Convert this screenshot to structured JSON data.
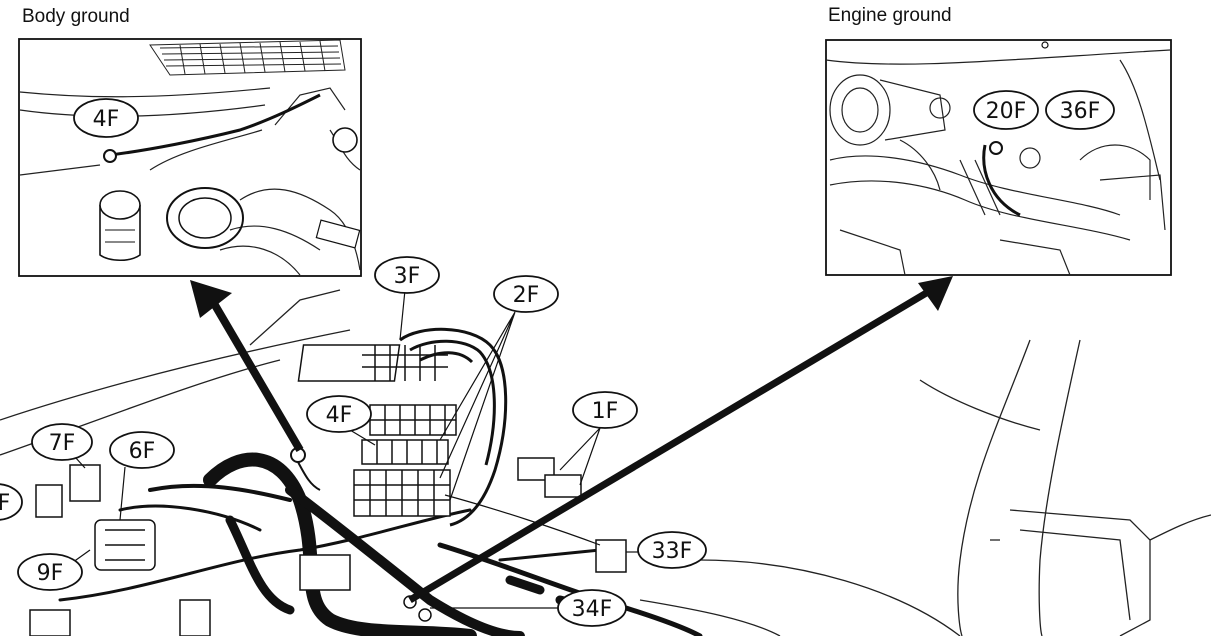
{
  "captions": {
    "body_ground": "Body ground",
    "engine_ground": "Engine ground"
  },
  "callouts": {
    "c4f_inset": "4F",
    "c20f": "20F",
    "c36f": "36F",
    "c3f": "3F",
    "c2f": "2F",
    "c4f": "4F",
    "c1f": "1F",
    "c7f": "7F",
    "c6f": "6F",
    "c9f": "9F",
    "c33f": "33F",
    "c34f": "34F",
    "partial_left": "F"
  }
}
